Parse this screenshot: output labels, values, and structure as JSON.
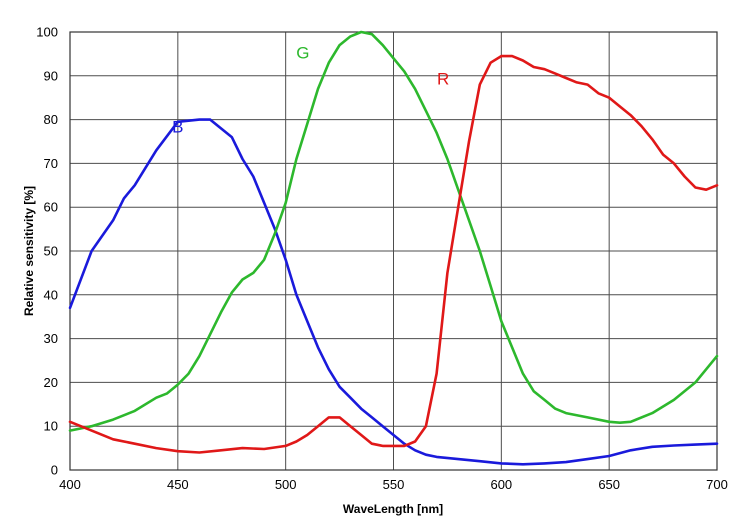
{
  "chart_data": {
    "type": "line",
    "title": "",
    "xlabel": "WaveLength [nm]",
    "ylabel": "Relative sensitivity [%]",
    "xlim": [
      400,
      700
    ],
    "ylim": [
      0,
      100
    ],
    "xticks": [
      400,
      450,
      500,
      550,
      600,
      650,
      700
    ],
    "yticks": [
      0,
      10,
      20,
      30,
      40,
      50,
      60,
      70,
      80,
      90,
      100
    ],
    "grid": true,
    "legend": "none",
    "series": [
      {
        "name": "B",
        "color": "#1a1adb",
        "label_at": [
          450,
          77
        ],
        "points": [
          [
            400,
            37
          ],
          [
            410,
            50
          ],
          [
            420,
            57
          ],
          [
            425,
            62
          ],
          [
            430,
            65
          ],
          [
            440,
            73
          ],
          [
            450,
            79.5
          ],
          [
            460,
            80
          ],
          [
            465,
            80
          ],
          [
            470,
            78
          ],
          [
            475,
            76
          ],
          [
            480,
            71
          ],
          [
            485,
            67
          ],
          [
            490,
            61
          ],
          [
            495,
            55
          ],
          [
            500,
            48
          ],
          [
            505,
            40
          ],
          [
            510,
            34
          ],
          [
            515,
            28
          ],
          [
            520,
            23
          ],
          [
            525,
            19
          ],
          [
            530,
            16.5
          ],
          [
            535,
            14
          ],
          [
            540,
            12
          ],
          [
            545,
            10
          ],
          [
            550,
            8
          ],
          [
            555,
            6
          ],
          [
            560,
            4.5
          ],
          [
            565,
            3.5
          ],
          [
            570,
            3
          ],
          [
            580,
            2.5
          ],
          [
            590,
            2
          ],
          [
            600,
            1.5
          ],
          [
            610,
            1.3
          ],
          [
            620,
            1.5
          ],
          [
            630,
            1.8
          ],
          [
            640,
            2.5
          ],
          [
            650,
            3.2
          ],
          [
            660,
            4.5
          ],
          [
            670,
            5.3
          ],
          [
            680,
            5.6
          ],
          [
            690,
            5.8
          ],
          [
            700,
            6
          ]
        ]
      },
      {
        "name": "G",
        "color": "#2db82d",
        "label_at": [
          508,
          94
        ],
        "points": [
          [
            400,
            9
          ],
          [
            410,
            10
          ],
          [
            420,
            11.5
          ],
          [
            430,
            13.5
          ],
          [
            440,
            16.5
          ],
          [
            445,
            17.5
          ],
          [
            450,
            19.5
          ],
          [
            455,
            22
          ],
          [
            460,
            26
          ],
          [
            465,
            31
          ],
          [
            470,
            36
          ],
          [
            475,
            40.5
          ],
          [
            480,
            43.5
          ],
          [
            485,
            45
          ],
          [
            490,
            48
          ],
          [
            495,
            54
          ],
          [
            500,
            61
          ],
          [
            505,
            71
          ],
          [
            510,
            79
          ],
          [
            515,
            87
          ],
          [
            520,
            93
          ],
          [
            525,
            97
          ],
          [
            530,
            99
          ],
          [
            535,
            100
          ],
          [
            540,
            99.5
          ],
          [
            545,
            97
          ],
          [
            550,
            94
          ],
          [
            555,
            91
          ],
          [
            560,
            87
          ],
          [
            565,
            82
          ],
          [
            570,
            77
          ],
          [
            575,
            71
          ],
          [
            580,
            64
          ],
          [
            585,
            57
          ],
          [
            590,
            50
          ],
          [
            595,
            42
          ],
          [
            600,
            34
          ],
          [
            605,
            28
          ],
          [
            610,
            22
          ],
          [
            615,
            18
          ],
          [
            620,
            16
          ],
          [
            625,
            14
          ],
          [
            630,
            13
          ],
          [
            640,
            12
          ],
          [
            650,
            11
          ],
          [
            655,
            10.8
          ],
          [
            660,
            11
          ],
          [
            670,
            13
          ],
          [
            680,
            16
          ],
          [
            690,
            20
          ],
          [
            700,
            26
          ]
        ]
      },
      {
        "name": "R",
        "color": "#e01818",
        "label_at": [
          573,
          88
        ],
        "points": [
          [
            400,
            11
          ],
          [
            410,
            9
          ],
          [
            420,
            7
          ],
          [
            430,
            6
          ],
          [
            440,
            5
          ],
          [
            450,
            4.3
          ],
          [
            460,
            4
          ],
          [
            470,
            4.5
          ],
          [
            480,
            5
          ],
          [
            490,
            4.8
          ],
          [
            500,
            5.5
          ],
          [
            505,
            6.5
          ],
          [
            510,
            8
          ],
          [
            515,
            10
          ],
          [
            520,
            12
          ],
          [
            525,
            12
          ],
          [
            530,
            10
          ],
          [
            535,
            8
          ],
          [
            540,
            6
          ],
          [
            545,
            5.5
          ],
          [
            550,
            5.5
          ],
          [
            555,
            5.5
          ],
          [
            560,
            6.5
          ],
          [
            565,
            10
          ],
          [
            570,
            22
          ],
          [
            575,
            45
          ],
          [
            580,
            60
          ],
          [
            585,
            75
          ],
          [
            590,
            88
          ],
          [
            595,
            93
          ],
          [
            600,
            94.5
          ],
          [
            605,
            94.5
          ],
          [
            610,
            93.5
          ],
          [
            615,
            92
          ],
          [
            620,
            91.5
          ],
          [
            625,
            90.5
          ],
          [
            630,
            89.5
          ],
          [
            635,
            88.5
          ],
          [
            640,
            88
          ],
          [
            645,
            86
          ],
          [
            650,
            85
          ],
          [
            655,
            83
          ],
          [
            660,
            81
          ],
          [
            665,
            78.5
          ],
          [
            670,
            75.5
          ],
          [
            675,
            72
          ],
          [
            680,
            70
          ],
          [
            685,
            67
          ],
          [
            690,
            64.5
          ],
          [
            695,
            64
          ],
          [
            700,
            65
          ]
        ]
      }
    ]
  }
}
